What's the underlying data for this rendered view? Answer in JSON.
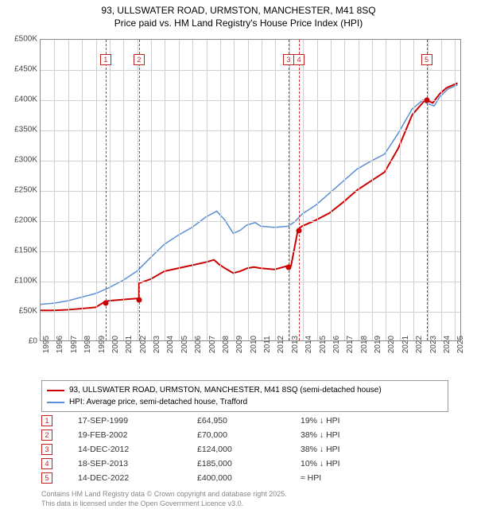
{
  "title_line1": "93, ULLSWATER ROAD, URMSTON, MANCHESTER, M41 8SQ",
  "title_line2": "Price paid vs. HM Land Registry's House Price Index (HPI)",
  "chart": {
    "type": "line",
    "background_color": "#ffffff",
    "grid_color": "#d0d0d0",
    "ylim": [
      0,
      500000
    ],
    "xlim": [
      1995,
      2025.5
    ],
    "y_ticks": [
      0,
      50000,
      100000,
      150000,
      200000,
      250000,
      300000,
      350000,
      400000,
      450000,
      500000
    ],
    "y_tick_labels": [
      "£0",
      "£50K",
      "£100K",
      "£150K",
      "£200K",
      "£250K",
      "£300K",
      "£350K",
      "£400K",
      "£450K",
      "£500K"
    ],
    "x_ticks": [
      1995,
      1996,
      1997,
      1998,
      1999,
      2000,
      2001,
      2002,
      2003,
      2004,
      2005,
      2006,
      2007,
      2008,
      2009,
      2010,
      2011,
      2012,
      2013,
      2014,
      2015,
      2016,
      2017,
      2018,
      2019,
      2020,
      2021,
      2022,
      2023,
      2024,
      2025
    ],
    "label_fontsize": 10,
    "series": {
      "price_paid": {
        "color": "#cc0000",
        "line_width": 2,
        "data": [
          [
            1995,
            50000
          ],
          [
            1996,
            50000
          ],
          [
            1997,
            51000
          ],
          [
            1998,
            53000
          ],
          [
            1999,
            55000
          ],
          [
            1999.71,
            64950
          ],
          [
            2000,
            66000
          ],
          [
            2001,
            68000
          ],
          [
            2002.13,
            70000
          ],
          [
            2002.14,
            95000
          ],
          [
            2003,
            102000
          ],
          [
            2004,
            115000
          ],
          [
            2005,
            120000
          ],
          [
            2006,
            125000
          ],
          [
            2007,
            130000
          ],
          [
            2007.6,
            134000
          ],
          [
            2008,
            126000
          ],
          [
            2008.4,
            120000
          ],
          [
            2009,
            112000
          ],
          [
            2009.5,
            115000
          ],
          [
            2010,
            120000
          ],
          [
            2010.5,
            122000
          ],
          [
            2011,
            120000
          ],
          [
            2012,
            118000
          ],
          [
            2012.95,
            124000
          ],
          [
            2013,
            124000
          ],
          [
            2013.2,
            124000
          ],
          [
            2013.71,
            185000
          ],
          [
            2014,
            190000
          ],
          [
            2015,
            200000
          ],
          [
            2016,
            212000
          ],
          [
            2017,
            230000
          ],
          [
            2018,
            250000
          ],
          [
            2019,
            265000
          ],
          [
            2020,
            280000
          ],
          [
            2021,
            320000
          ],
          [
            2022,
            375000
          ],
          [
            2022.95,
            400000
          ],
          [
            2023,
            400000
          ],
          [
            2023.5,
            395000
          ],
          [
            2024,
            410000
          ],
          [
            2024.5,
            420000
          ],
          [
            2025,
            425000
          ],
          [
            2025.3,
            428000
          ]
        ]
      },
      "hpi": {
        "color": "#5b8fd6",
        "line_width": 1.5,
        "data": [
          [
            1995,
            60000
          ],
          [
            1996,
            62000
          ],
          [
            1997,
            66000
          ],
          [
            1998,
            72000
          ],
          [
            1999,
            78000
          ],
          [
            2000,
            88000
          ],
          [
            2001,
            100000
          ],
          [
            2002,
            115000
          ],
          [
            2003,
            138000
          ],
          [
            2004,
            160000
          ],
          [
            2005,
            175000
          ],
          [
            2006,
            188000
          ],
          [
            2007,
            205000
          ],
          [
            2007.8,
            215000
          ],
          [
            2008.4,
            200000
          ],
          [
            2009,
            178000
          ],
          [
            2009.5,
            183000
          ],
          [
            2010,
            192000
          ],
          [
            2010.6,
            196000
          ],
          [
            2011,
            190000
          ],
          [
            2012,
            188000
          ],
          [
            2013,
            190000
          ],
          [
            2013.5,
            198000
          ],
          [
            2014,
            210000
          ],
          [
            2015,
            225000
          ],
          [
            2016,
            245000
          ],
          [
            2017,
            265000
          ],
          [
            2018,
            285000
          ],
          [
            2019,
            298000
          ],
          [
            2020,
            310000
          ],
          [
            2021,
            345000
          ],
          [
            2022,
            385000
          ],
          [
            2022.8,
            400000
          ],
          [
            2023,
            395000
          ],
          [
            2023.6,
            390000
          ],
          [
            2024,
            405000
          ],
          [
            2024.6,
            418000
          ],
          [
            2025,
            422000
          ],
          [
            2025.3,
            425000
          ]
        ]
      }
    },
    "sale_markers": [
      {
        "num": "1",
        "year": 1999.71,
        "price": 64950
      },
      {
        "num": "2",
        "year": 2002.13,
        "price": 70000
      },
      {
        "num": "3",
        "year": 2012.95,
        "price": 124000
      },
      {
        "num": "4",
        "year": 2013.71,
        "price": 185000
      },
      {
        "num": "5",
        "year": 2022.95,
        "price": 400000
      }
    ],
    "marker_line_color": "#d03030",
    "dot_color": "#cc0000"
  },
  "legend": {
    "series1_label": "93, ULLSWATER ROAD, URMSTON, MANCHESTER, M41 8SQ (semi-detached house)",
    "series1_color": "#cc0000",
    "series2_label": "HPI: Average price, semi-detached house, Trafford",
    "series2_color": "#5b8fd6"
  },
  "sales": [
    {
      "num": "1",
      "date": "17-SEP-1999",
      "price": "£64,950",
      "diff": "19% ↓ HPI"
    },
    {
      "num": "2",
      "date": "19-FEB-2002",
      "price": "£70,000",
      "diff": "38% ↓ HPI"
    },
    {
      "num": "3",
      "date": "14-DEC-2012",
      "price": "£124,000",
      "diff": "38% ↓ HPI"
    },
    {
      "num": "4",
      "date": "18-SEP-2013",
      "price": "£185,000",
      "diff": "10% ↓ HPI"
    },
    {
      "num": "5",
      "date": "14-DEC-2022",
      "price": "£400,000",
      "diff": "≈ HPI"
    }
  ],
  "footer_line1": "Contains HM Land Registry data © Crown copyright and database right 2025.",
  "footer_line2": "This data is licensed under the Open Government Licence v3.0."
}
